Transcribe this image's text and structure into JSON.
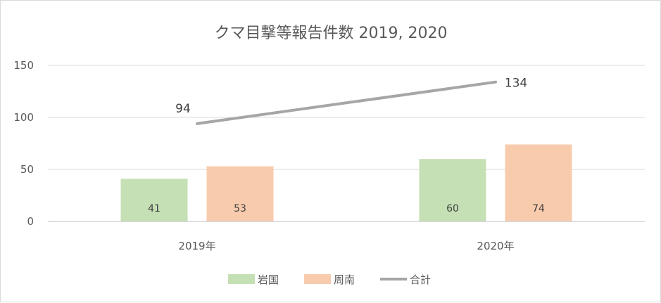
{
  "chart_data": {
    "type": "bar",
    "title": "クマ目撃等報告件数 2019, 2020",
    "categories": [
      "2019年",
      "2020年"
    ],
    "yticks": [
      "0",
      "50",
      "100",
      "150"
    ],
    "ylim": [
      0,
      150
    ],
    "grid": true,
    "legend_position": "bottom",
    "series": [
      {
        "name": "岩国",
        "kind": "bar",
        "color": "#c5e0b4",
        "values": [
          41,
          60
        ],
        "labels": [
          "41",
          "60"
        ]
      },
      {
        "name": "周南",
        "kind": "bar",
        "color": "#f8cbad",
        "values": [
          53,
          74
        ],
        "labels": [
          "53",
          "74"
        ]
      },
      {
        "name": "合計",
        "kind": "line",
        "color": "#a6a6a6",
        "values": [
          94,
          134
        ],
        "labels": [
          "94",
          "134"
        ]
      }
    ]
  }
}
